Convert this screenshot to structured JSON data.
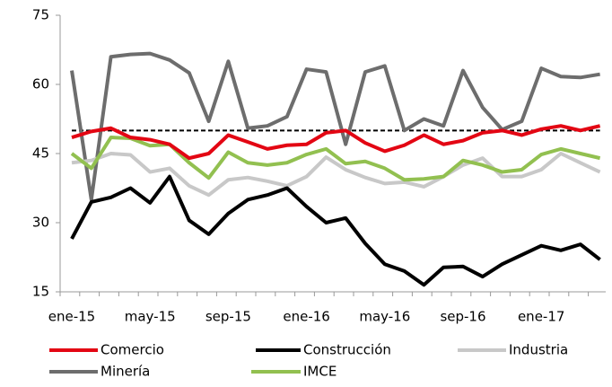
{
  "chart_data": {
    "type": "line",
    "categories": [
      "ene-15",
      null,
      null,
      null,
      "may-15",
      null,
      null,
      null,
      "sep-15",
      null,
      null,
      null,
      "ene-16",
      null,
      null,
      null,
      "may-16",
      null,
      null,
      null,
      "sep-16",
      null,
      null,
      null,
      "ene-17",
      null,
      null,
      null
    ],
    "series": [
      {
        "name": "Comercio",
        "color": "#e30613",
        "values": [
          48.5,
          49.8,
          50.5,
          48.5,
          48,
          47,
          44,
          45,
          49,
          47.5,
          46,
          46.8,
          47,
          49.5,
          50,
          47.3,
          45.5,
          46.8,
          49,
          47,
          47.8,
          49.5,
          50,
          49,
          50.3,
          51,
          50,
          51
        ]
      },
      {
        "name": "Construcción",
        "color": "#000000",
        "values": [
          26.5,
          34.5,
          35.5,
          37.5,
          34.3,
          40,
          30.5,
          27.5,
          32,
          35,
          36,
          37.5,
          33.5,
          30,
          31,
          25.5,
          21,
          19.5,
          16.5,
          20.3,
          20.5,
          18.3,
          21,
          23,
          25,
          24,
          25.3,
          22
        ]
      },
      {
        "name": "Industria",
        "color": "#c8c8c8",
        "values": [
          43,
          43.5,
          45,
          44.7,
          41,
          41.8,
          38,
          36,
          39.3,
          39.8,
          39,
          38,
          40,
          44.2,
          41.5,
          39.8,
          38.5,
          38.8,
          37.8,
          40,
          42.5,
          44,
          40,
          40,
          41.5,
          45,
          43,
          41
        ]
      },
      {
        "name": "Minería",
        "color": "#6d6d6d",
        "values": [
          63,
          35,
          66,
          66.5,
          66.7,
          65.3,
          62.5,
          52,
          65,
          50.5,
          51,
          53,
          63.3,
          62.7,
          47,
          62.7,
          64,
          50,
          52.5,
          51,
          63,
          55,
          50.2,
          52,
          63.5,
          61.7,
          61.5,
          62.2
        ]
      },
      {
        "name": "IMCE",
        "color": "#92c050",
        "values": [
          45,
          41.8,
          48.5,
          48.3,
          46.7,
          47,
          43,
          39.7,
          45.3,
          43,
          42.5,
          43,
          44.8,
          46,
          42.8,
          43.3,
          41.8,
          39.3,
          39.5,
          40,
          43.5,
          42.5,
          41,
          41.5,
          44.8,
          46,
          45,
          44
        ]
      }
    ],
    "reference_line": 50,
    "ylim": [
      15,
      75
    ],
    "yticks": [
      15,
      30,
      45,
      60,
      75
    ],
    "legend": "bottom"
  }
}
